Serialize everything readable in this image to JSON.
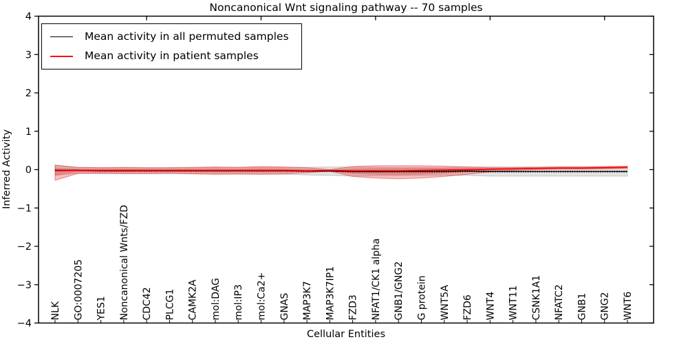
{
  "figure": {
    "title": "Noncanonical Wnt signaling pathway -- 70 samples",
    "background_color": "#ffffff",
    "axis_color": "#000000"
  },
  "chart_data": {
    "type": "line",
    "title": "Noncanonical Wnt signaling pathway -- 70 samples",
    "xlabel": "Cellular Entities",
    "ylabel": "Inferred Activity",
    "ylim": [
      -4,
      4
    ],
    "yticks": [
      -4,
      -3,
      -2,
      -1,
      0,
      1,
      2,
      3,
      4
    ],
    "grid": false,
    "legend_position": "upper left",
    "categories": [
      "NLK",
      "GO:0007205",
      "YES1",
      "Noncanonical Wnts/FZD",
      "CDC42",
      "PLCG1",
      "CAMK2A",
      "mol:DAG",
      "mol:IP3",
      "mol:Ca2+",
      "GNAS",
      "MAP3K7",
      "MAP3K7IP1",
      "FZD3",
      "NFAT1/CK1 alpha",
      "GNB1/GNG2",
      "G protein",
      "WNT5A",
      "FZD6",
      "WNT4",
      "WNT11",
      "CSNK1A1",
      "NFATC2",
      "GNB1",
      "GNG2",
      "WNT6"
    ],
    "series": [
      {
        "name": "Mean activity in all permuted samples",
        "color": "#000000",
        "marker": "dotted",
        "values": [
          -0.02,
          -0.02,
          -0.03,
          -0.03,
          -0.03,
          -0.03,
          -0.03,
          -0.03,
          -0.03,
          -0.03,
          -0.03,
          -0.04,
          -0.04,
          -0.05,
          -0.05,
          -0.05,
          -0.05,
          -0.05,
          -0.04,
          -0.05,
          -0.05,
          -0.05,
          -0.05,
          -0.05,
          -0.05,
          -0.05
        ],
        "band": {
          "label": "permuted-std-band",
          "color": "#999999",
          "opacity": 0.27,
          "upper": [
            0.1,
            0.06,
            0.05,
            0.05,
            0.05,
            0.05,
            0.05,
            0.06,
            0.06,
            0.06,
            0.06,
            0.06,
            0.07,
            0.07,
            0.06,
            0.05,
            0.05,
            0.05,
            0.07,
            0.07,
            0.07,
            0.07,
            0.07,
            0.07,
            0.07,
            0.07
          ],
          "lower": [
            -0.14,
            -0.1,
            -0.11,
            -0.11,
            -0.11,
            -0.11,
            -0.11,
            -0.12,
            -0.12,
            -0.12,
            -0.12,
            -0.14,
            -0.15,
            -0.17,
            -0.16,
            -0.15,
            -0.15,
            -0.15,
            -0.15,
            -0.17,
            -0.17,
            -0.17,
            -0.17,
            -0.17,
            -0.17,
            -0.17
          ]
        }
      },
      {
        "name": "Mean activity in patient samples",
        "color": "#ff0000",
        "marker": "none",
        "values": [
          -0.03,
          -0.02,
          -0.02,
          -0.02,
          -0.02,
          -0.02,
          -0.02,
          -0.02,
          -0.02,
          -0.02,
          -0.02,
          -0.03,
          -0.02,
          -0.03,
          -0.03,
          -0.03,
          -0.02,
          -0.01,
          0.0,
          0.01,
          0.02,
          0.03,
          0.04,
          0.04,
          0.05,
          0.06
        ],
        "band": {
          "label": "patient-std-band",
          "color": "#e23b3b",
          "opacity": 0.32,
          "upper": [
            0.12,
            0.06,
            0.05,
            0.06,
            0.05,
            0.05,
            0.06,
            0.07,
            0.06,
            0.08,
            0.07,
            0.05,
            0.0,
            0.08,
            0.1,
            0.1,
            0.1,
            0.09,
            0.07,
            0.05,
            0.05,
            0.06,
            0.07,
            0.07,
            0.08,
            0.09
          ],
          "lower": [
            -0.28,
            -0.1,
            -0.09,
            -0.1,
            -0.1,
            -0.09,
            -0.11,
            -0.12,
            -0.11,
            -0.12,
            -0.11,
            -0.08,
            -0.04,
            -0.18,
            -0.22,
            -0.24,
            -0.22,
            -0.18,
            -0.12,
            -0.06,
            -0.02,
            0.0,
            0.01,
            0.01,
            0.02,
            0.03
          ]
        }
      }
    ]
  }
}
